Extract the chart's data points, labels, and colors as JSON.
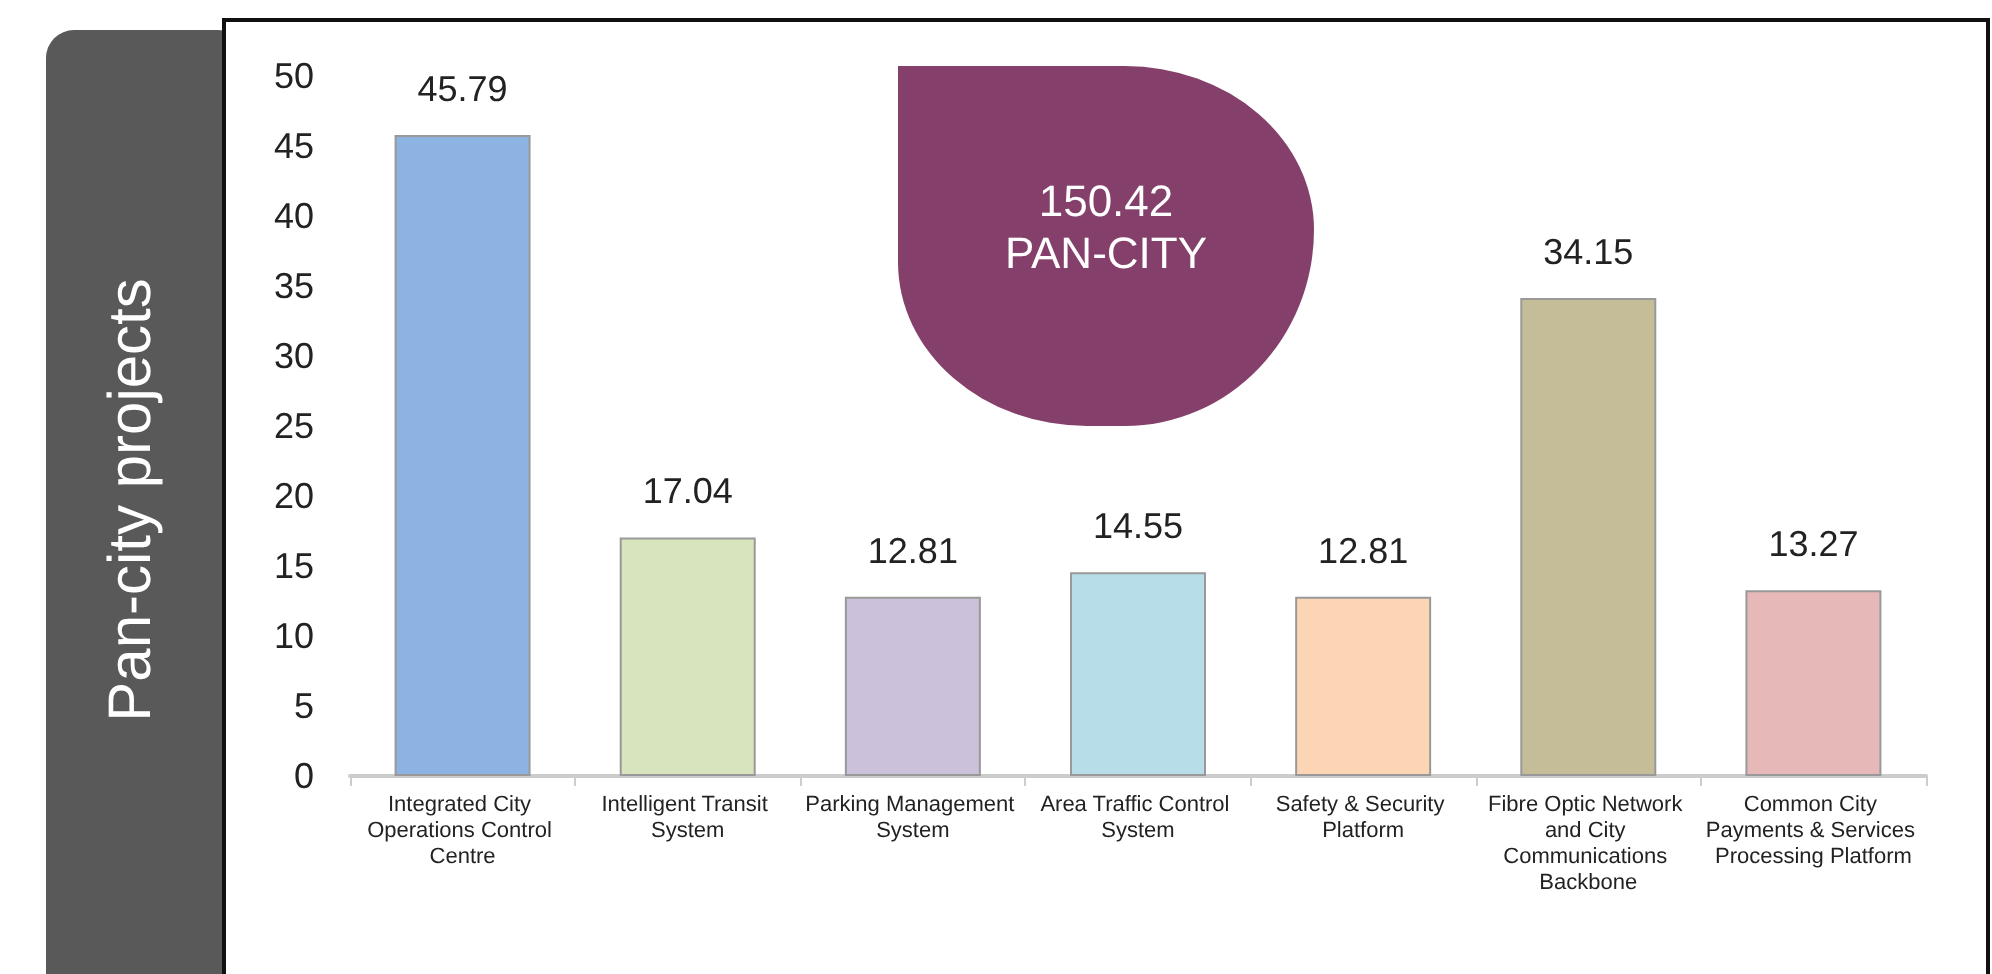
{
  "chart_data": {
    "type": "bar",
    "ylabel": "Pan-city projects",
    "categories": [
      "Integrated City Operations Control Centre",
      "Intelligent Transit System",
      "Parking Management System",
      "Area Traffic Control System",
      "Safety & Security Platform",
      "Fibre Optic Network and City Communications Backbone",
      "Common City Payments & Services Processing Platform"
    ],
    "values": [
      45.79,
      17.04,
      12.81,
      14.55,
      12.81,
      34.15,
      13.27
    ],
    "colors": [
      "#8db3e2",
      "#d7e4bd",
      "#ccc1da",
      "#b7dee8",
      "#fcd5b5",
      "#c4bd97",
      "#e6b9b8"
    ],
    "ylim": [
      0,
      50
    ],
    "yticks": [
      0,
      5,
      10,
      15,
      20,
      25,
      30,
      35,
      40,
      45,
      50
    ],
    "data_labels": true,
    "grid": false,
    "annotations": [
      "150.42\nPAN-CITY"
    ]
  }
}
